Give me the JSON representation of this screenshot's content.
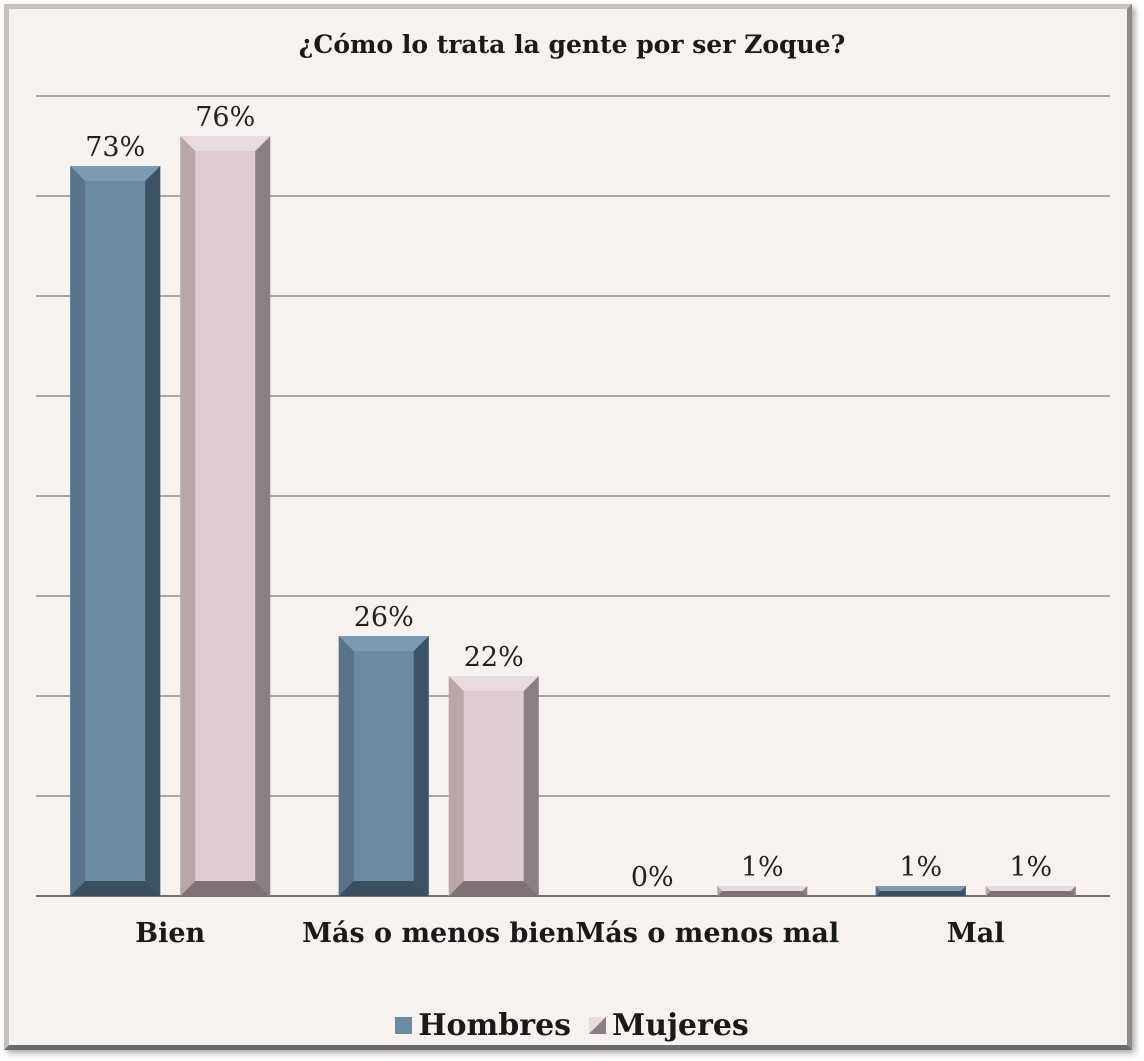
{
  "chart_data": {
    "type": "bar",
    "title": "¿Cómo lo trata la gente por ser Zoque?",
    "categories": [
      "Bien",
      "Más o menos bien",
      "Más o menos mal",
      "Mal"
    ],
    "series": [
      {
        "name": "Hombres",
        "values": [
          73,
          26,
          0,
          1
        ],
        "labels": [
          "73%",
          "26%",
          "0%",
          "1%"
        ]
      },
      {
        "name": "Mujeres",
        "values": [
          76,
          22,
          1,
          1
        ],
        "labels": [
          "76%",
          "22%",
          "1%",
          "1%"
        ]
      }
    ],
    "ylim": [
      0,
      80
    ],
    "grid": true,
    "legend": "bottom",
    "colors": {
      "Hombres": {
        "front": "#6a8aa2",
        "left": "#58738a",
        "right": "#3d5264",
        "top": "#7b9bb4",
        "bottom": "#3a4e5e"
      },
      "Mujeres": {
        "front": "#ddcdd2",
        "left": "#b8a6ab",
        "right": "#8a7f82",
        "top": "#e8dadd",
        "bottom": "#7e7275"
      }
    }
  }
}
